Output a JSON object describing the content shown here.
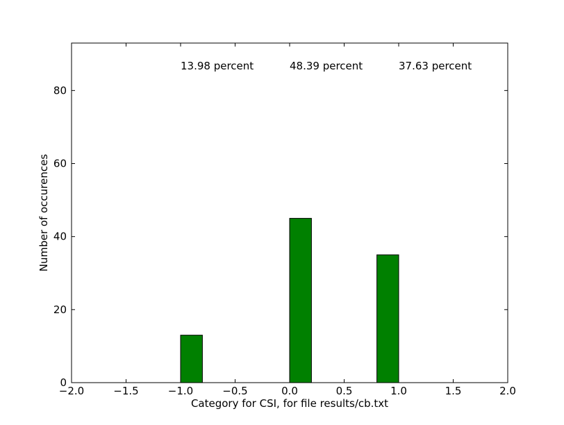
{
  "chart_data": {
    "type": "bar",
    "xlabel": "Category for CSI, for file results/cb.txt",
    "ylabel": "Number of occurences",
    "xlim": [
      -2.0,
      2.0
    ],
    "ylim": [
      0,
      93
    ],
    "x_ticks": [
      -2.0,
      -1.5,
      -1.0,
      -0.5,
      0.0,
      0.5,
      1.0,
      1.5,
      2.0
    ],
    "x_tick_labels": [
      "−2.0",
      "−1.5",
      "−1.0",
      "−0.5",
      "0.0",
      "0.5",
      "1.0",
      "1.5",
      "2.0"
    ],
    "y_ticks": [
      0,
      20,
      40,
      60,
      80
    ],
    "y_tick_labels": [
      "0",
      "20",
      "40",
      "60",
      "80"
    ],
    "bars": [
      {
        "x_start": -1.0,
        "x_end": -0.8,
        "value": 13
      },
      {
        "x_start": 0.0,
        "x_end": 0.2,
        "value": 45
      },
      {
        "x_start": 0.8,
        "x_end": 1.0,
        "value": 35
      }
    ],
    "bar_color": "#008000",
    "annotations": [
      {
        "text": "13.98 percent",
        "x": -1.0,
        "y": 85
      },
      {
        "text": "48.39 percent",
        "x": 0.0,
        "y": 85
      },
      {
        "text": "37.63 percent",
        "x": 1.0,
        "y": 85
      }
    ],
    "grid": false
  }
}
